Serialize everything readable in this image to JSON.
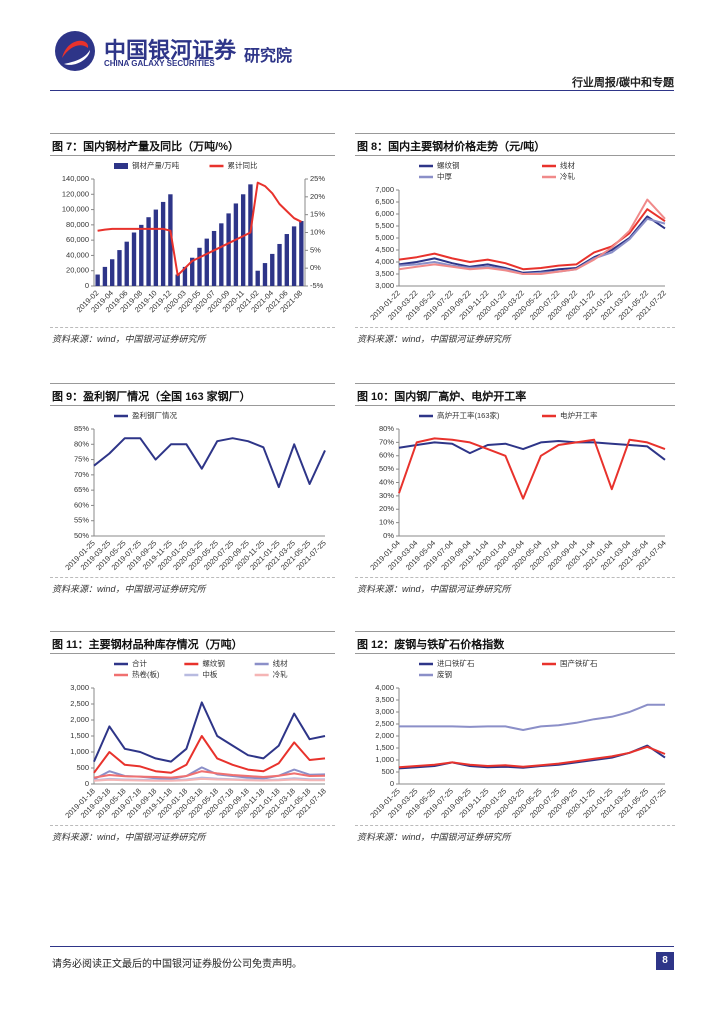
{
  "header": {
    "company": "中国银河证券",
    "company_en": "CHINA GALAXY SECURITIES",
    "institute": "研究院",
    "section": "行业周报/碳中和专题"
  },
  "footer": {
    "disclaimer": "请务必阅读正文最后的中国银河证券股份公司免责声明。",
    "page": "8"
  },
  "chart_data": [
    {
      "type": "combo",
      "title": "图 7：国内钢材产量及同比（万吨/%）",
      "source": "资料来源：wind，中国银河证券研究所",
      "categories": [
        "2019-02",
        null,
        "2019-04",
        null,
        "2019-06",
        null,
        "2019-08",
        null,
        "2019-10",
        null,
        "2019-12",
        null,
        "2020-03",
        null,
        "2020-05",
        null,
        "2020-07",
        null,
        "2020-09",
        null,
        "2020-11",
        null,
        "2021-02",
        null,
        "2021-04",
        null,
        "2021-06",
        null,
        "2021-08"
      ],
      "ylim": [
        0,
        140000
      ],
      "yticks": [
        0,
        {
          "value": 20000,
          "label": "20,000"
        },
        {
          "value": 40000,
          "label": "40,000"
        },
        {
          "value": 60000,
          "label": "60,000"
        },
        {
          "value": 80000,
          "label": "80,000"
        },
        {
          "value": 100000,
          "label": "100,000"
        },
        {
          "value": 120000,
          "label": "120,000"
        },
        {
          "value": 140000,
          "label": "140,000"
        }
      ],
      "y2lim": [
        -5,
        25
      ],
      "y2ticks": [
        {
          "value": -5,
          "label": "-5%"
        },
        {
          "value": 0,
          "label": "0%"
        },
        {
          "value": 5,
          "label": "5%"
        },
        {
          "value": 10,
          "label": "10%"
        },
        {
          "value": 15,
          "label": "15%"
        },
        {
          "value": 20,
          "label": "20%"
        },
        {
          "value": 25,
          "label": "25%"
        }
      ],
      "series": [
        {
          "name": "钢材产量/万吨",
          "type": "bar",
          "color": "#2e3588",
          "values": [
            15000,
            25000,
            35000,
            47000,
            58000,
            70000,
            80000,
            90000,
            100000,
            110000,
            120000,
            15000,
            25000,
            37000,
            50000,
            62000,
            72000,
            82000,
            95000,
            108000,
            120000,
            133000,
            20000,
            30000,
            42000,
            55000,
            68000,
            78000,
            85000
          ]
        },
        {
          "name": "累计同比",
          "type": "line",
          "axis": "y2",
          "color": "#e8322c",
          "values": [
            10.5,
            10.8,
            11,
            11,
            11,
            11,
            11,
            11,
            11,
            11,
            10.5,
            -2,
            0,
            2,
            3,
            4,
            5,
            6,
            7,
            8,
            9,
            10,
            24,
            23,
            21,
            18,
            16,
            14,
            13
          ]
        }
      ]
    },
    {
      "type": "line",
      "title": "图 8：国内主要钢材价格走势（元/吨）",
      "source": "资料来源：wind，中国银河证券研究所",
      "categories": [
        "2019-01-22",
        "2019-03-22",
        "2019-05-22",
        "2019-07-22",
        "2019-09-22",
        "2019-11-22",
        "2020-01-22",
        "2020-03-22",
        "2020-05-22",
        "2020-07-22",
        "2020-09-22",
        "2020-11-22",
        "2021-01-22",
        "2021-03-22",
        "2021-05-22",
        "2021-07-22"
      ],
      "ylim": [
        3000,
        7000
      ],
      "yticks": [
        {
          "value": 3000,
          "label": "3,000"
        },
        {
          "value": 3500,
          "label": "3,500"
        },
        {
          "value": 4000,
          "label": "4,000"
        },
        {
          "value": 4500,
          "label": "4,500"
        },
        {
          "value": 5000,
          "label": "5,000"
        },
        {
          "value": 5500,
          "label": "5,500"
        },
        {
          "value": 6000,
          "label": "6,000"
        },
        {
          "value": 6500,
          "label": "6,500"
        },
        {
          "value": 7000,
          "label": "7,000"
        }
      ],
      "series": [
        {
          "name": "螺纹钢",
          "color": "#2e3588",
          "values": [
            3900,
            4000,
            4150,
            3950,
            3800,
            3900,
            3750,
            3550,
            3600,
            3700,
            3750,
            4200,
            4500,
            5000,
            5900,
            5400
          ]
        },
        {
          "name": "线材",
          "color": "#e8322c",
          "values": [
            4100,
            4200,
            4350,
            4150,
            4000,
            4100,
            3950,
            3700,
            3750,
            3850,
            3900,
            4400,
            4650,
            5200,
            6200,
            5700
          ]
        },
        {
          "name": "中厚",
          "color": "#8b8fc8",
          "values": [
            3850,
            3900,
            4000,
            3850,
            3750,
            3800,
            3700,
            3500,
            3550,
            3600,
            3700,
            4150,
            4400,
            4950,
            5800,
            5600
          ]
        },
        {
          "name": "冷轧",
          "color": "#f08a8a",
          "values": [
            3700,
            3800,
            3900,
            3800,
            3700,
            3750,
            3650,
            3500,
            3500,
            3600,
            3700,
            4100,
            4600,
            5300,
            6600,
            5800
          ]
        }
      ]
    },
    {
      "type": "line",
      "title": "图 9：盈利钢厂情况（全国 163 家钢厂）",
      "source": "资料来源：wind，中国银河证券研究所",
      "categories": [
        "2019-01-25",
        "2019-03-25",
        "2019-05-25",
        "2019-07-25",
        "2019-09-25",
        "2019-11-25",
        "2020-01-25",
        "2020-03-25",
        "2020-05-25",
        "2020-07-25",
        "2020-09-25",
        "2020-11-25",
        "2021-01-25",
        "2021-03-25",
        "2021-05-25",
        "2021-07-25"
      ],
      "ylim": [
        50,
        85
      ],
      "yticks": [
        {
          "value": 50,
          "label": "50%"
        },
        {
          "value": 55,
          "label": "55%"
        },
        {
          "value": 60,
          "label": "60%"
        },
        {
          "value": 65,
          "label": "65%"
        },
        {
          "value": 70,
          "label": "70%"
        },
        {
          "value": 75,
          "label": "75%"
        },
        {
          "value": 80,
          "label": "80%"
        },
        {
          "value": 85,
          "label": "85%"
        }
      ],
      "series": [
        {
          "name": "盈利钢厂情况",
          "color": "#2e3588",
          "values": [
            73,
            77,
            82,
            82,
            75,
            80,
            80,
            72,
            81,
            82,
            81,
            79,
            66,
            80,
            67,
            78
          ]
        }
      ]
    },
    {
      "type": "line",
      "title": "图 10：国内钢厂高炉、电炉开工率",
      "source": "资料来源：wind，中国银河证券研究所",
      "categories": [
        "2019-01-04",
        "2019-03-04",
        "2019-05-04",
        "2019-07-04",
        "2019-09-04",
        "2019-11-04",
        "2020-01-04",
        "2020-03-04",
        "2020-05-04",
        "2020-07-04",
        "2020-09-04",
        "2020-11-04",
        "2021-01-04",
        "2021-03-04",
        "2021-05-04",
        "2021-07-04"
      ],
      "ylim": [
        0,
        80
      ],
      "yticks": [
        {
          "value": 0,
          "label": "0%"
        },
        {
          "value": 10,
          "label": "10%"
        },
        {
          "value": 20,
          "label": "20%"
        },
        {
          "value": 30,
          "label": "30%"
        },
        {
          "value": 40,
          "label": "40%"
        },
        {
          "value": 50,
          "label": "50%"
        },
        {
          "value": 60,
          "label": "60%"
        },
        {
          "value": 70,
          "label": "70%"
        },
        {
          "value": 80,
          "label": "80%"
        }
      ],
      "series": [
        {
          "name": "高炉开工率(163家)",
          "color": "#2e3588",
          "values": [
            66,
            68,
            70,
            69,
            62,
            68,
            69,
            65,
            70,
            71,
            70,
            70,
            69,
            68,
            67,
            57
          ]
        },
        {
          "name": "电炉开工率",
          "color": "#e8322c",
          "values": [
            32,
            70,
            73,
            72,
            70,
            65,
            60,
            28,
            60,
            68,
            70,
            72,
            35,
            72,
            70,
            65
          ]
        }
      ]
    },
    {
      "type": "line",
      "title": "图 11：主要钢材品种库存情况（万吨）",
      "source": "资料来源：wind，中国银河证券研究所",
      "categories": [
        "2019-01-18",
        "2019-03-18",
        "2019-05-18",
        "2019-07-18",
        "2019-09-18",
        "2019-11-18",
        "2020-01-18",
        "2020-03-18",
        "2020-05-18",
        "2020-07-18",
        "2020-09-18",
        "2020-11-18",
        "2021-01-18",
        "2021-03-18",
        "2021-05-18",
        "2021-07-18"
      ],
      "ylim": [
        0,
        3000
      ],
      "yticks": [
        0,
        500,
        {
          "value": 1000,
          "label": "1,000"
        },
        {
          "value": 1500,
          "label": "1,500"
        },
        {
          "value": 2000,
          "label": "2,000"
        },
        {
          "value": 2500,
          "label": "2,500"
        },
        {
          "value": 3000,
          "label": "3,000"
        }
      ],
      "series": [
        {
          "name": "合计",
          "color": "#2e3588",
          "values": [
            700,
            1800,
            1100,
            1000,
            800,
            700,
            1100,
            2550,
            1500,
            1200,
            900,
            800,
            1200,
            2200,
            1400,
            1500
          ]
        },
        {
          "name": "螺纹钢",
          "color": "#e8322c",
          "values": [
            350,
            1000,
            600,
            550,
            400,
            350,
            600,
            1500,
            800,
            600,
            450,
            400,
            650,
            1300,
            750,
            800
          ]
        },
        {
          "name": "线材",
          "color": "#8b8fc8",
          "values": [
            150,
            400,
            250,
            230,
            180,
            150,
            250,
            520,
            300,
            250,
            200,
            170,
            260,
            450,
            290,
            300
          ]
        },
        {
          "name": "热卷(板)",
          "color": "#f07070",
          "values": [
            200,
            280,
            240,
            230,
            220,
            200,
            250,
            400,
            330,
            280,
            250,
            220,
            260,
            330,
            250,
            260
          ]
        },
        {
          "name": "中板",
          "color": "#b8bbe0",
          "values": [
            120,
            160,
            140,
            130,
            120,
            110,
            140,
            200,
            170,
            150,
            130,
            120,
            140,
            180,
            150,
            150
          ]
        },
        {
          "name": "冷轧",
          "color": "#f5b5b5",
          "values": [
            100,
            130,
            120,
            110,
            100,
            100,
            120,
            160,
            140,
            130,
            120,
            110,
            120,
            140,
            120,
            120
          ]
        }
      ]
    },
    {
      "type": "line",
      "title": "图 12：废钢与铁矿石价格指数",
      "source": "资料来源：wind，中国银河证券研究所",
      "categories": [
        "2019-01-25",
        "2019-03-25",
        "2019-05-25",
        "2019-07-25",
        "2019-09-25",
        "2019-11-25",
        "2020-01-25",
        "2020-03-25",
        "2020-05-25",
        "2020-07-25",
        "2020-09-25",
        "2020-11-25",
        "2021-01-25",
        "2021-03-25",
        "2021-05-25",
        "2021-07-25"
      ],
      "ylim": [
        0,
        4000
      ],
      "yticks": [
        0,
        500,
        {
          "value": 1000,
          "label": "1,000"
        },
        {
          "value": 1500,
          "label": "1,500"
        },
        {
          "value": 2000,
          "label": "2,000"
        },
        {
          "value": 2500,
          "label": "2,500"
        },
        {
          "value": 3000,
          "label": "3,000"
        },
        {
          "value": 3500,
          "label": "3,500"
        },
        {
          "value": 4000,
          "label": "4,000"
        }
      ],
      "series": [
        {
          "name": "进口铁矿石",
          "color": "#2e3588",
          "values": [
            650,
            700,
            750,
            900,
            750,
            700,
            720,
            680,
            750,
            800,
            900,
            1000,
            1100,
            1300,
            1600,
            1100
          ]
        },
        {
          "name": "国产铁矿石",
          "color": "#e8322c",
          "values": [
            700,
            750,
            800,
            900,
            800,
            750,
            780,
            720,
            780,
            850,
            950,
            1050,
            1150,
            1300,
            1550,
            1250
          ]
        },
        {
          "name": "废钢",
          "color": "#8b8fc8",
          "values": [
            2400,
            2400,
            2400,
            2400,
            2380,
            2400,
            2400,
            2250,
            2400,
            2450,
            2550,
            2700,
            2800,
            3000,
            3300,
            3300
          ]
        }
      ]
    }
  ]
}
